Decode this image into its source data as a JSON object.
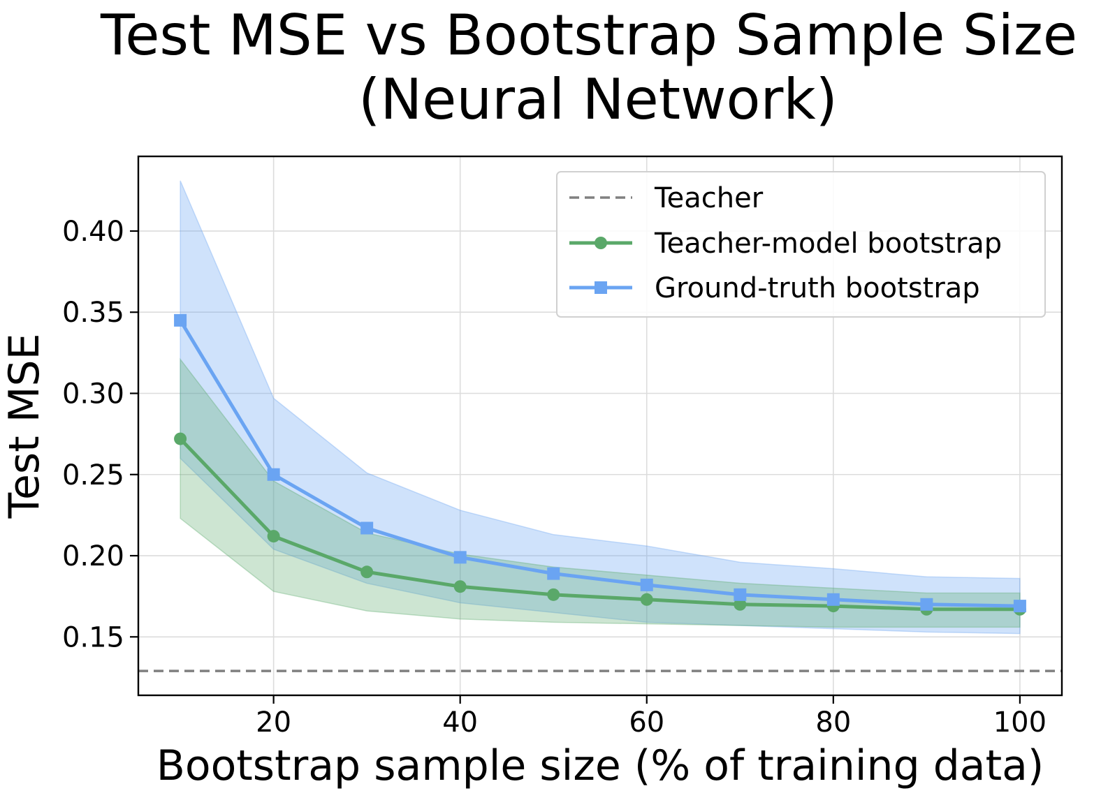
{
  "chart_data": {
    "type": "line",
    "title_lines": [
      "Test MSE vs Bootstrap Sample Size",
      "(Neural Network)"
    ],
    "xlabel": "Bootstrap sample size (% of training data)",
    "ylabel": "Test MSE",
    "xlim": [
      5.5,
      104.5
    ],
    "ylim": [
      0.114,
      0.446
    ],
    "xticks": [
      20,
      40,
      60,
      80,
      100
    ],
    "xtick_labels": [
      "20",
      "40",
      "60",
      "80",
      "100"
    ],
    "yticks": [
      0.15,
      0.2,
      0.25,
      0.3,
      0.35,
      0.4
    ],
    "ytick_labels": [
      "0.15",
      "0.20",
      "0.25",
      "0.30",
      "0.35",
      "0.40"
    ],
    "grid": true,
    "legend_position": "top-right",
    "x": [
      10,
      20,
      30,
      40,
      50,
      60,
      70,
      80,
      90,
      100
    ],
    "reference_lines": [
      {
        "name": "Teacher",
        "y": 0.129,
        "color": "#808080",
        "style": "dashed"
      }
    ],
    "series": [
      {
        "name": "Teacher-model bootstrap",
        "color": "#5aa869",
        "marker": "circle",
        "values": [
          0.272,
          0.212,
          0.19,
          0.181,
          0.176,
          0.173,
          0.17,
          0.169,
          0.167,
          0.167
        ],
        "band_lower": [
          0.223,
          0.178,
          0.166,
          0.161,
          0.159,
          0.158,
          0.157,
          0.156,
          0.156,
          0.156
        ],
        "band_upper": [
          0.321,
          0.246,
          0.214,
          0.201,
          0.193,
          0.188,
          0.183,
          0.18,
          0.177,
          0.177
        ]
      },
      {
        "name": "Ground-truth bootstrap",
        "color": "#6aa4f2",
        "marker": "square",
        "values": [
          0.345,
          0.25,
          0.217,
          0.199,
          0.189,
          0.182,
          0.176,
          0.173,
          0.17,
          0.169
        ],
        "band_lower": [
          0.26,
          0.204,
          0.183,
          0.171,
          0.165,
          0.159,
          0.157,
          0.155,
          0.153,
          0.152
        ],
        "band_upper": [
          0.431,
          0.297,
          0.251,
          0.228,
          0.213,
          0.206,
          0.196,
          0.192,
          0.187,
          0.186
        ]
      }
    ]
  }
}
